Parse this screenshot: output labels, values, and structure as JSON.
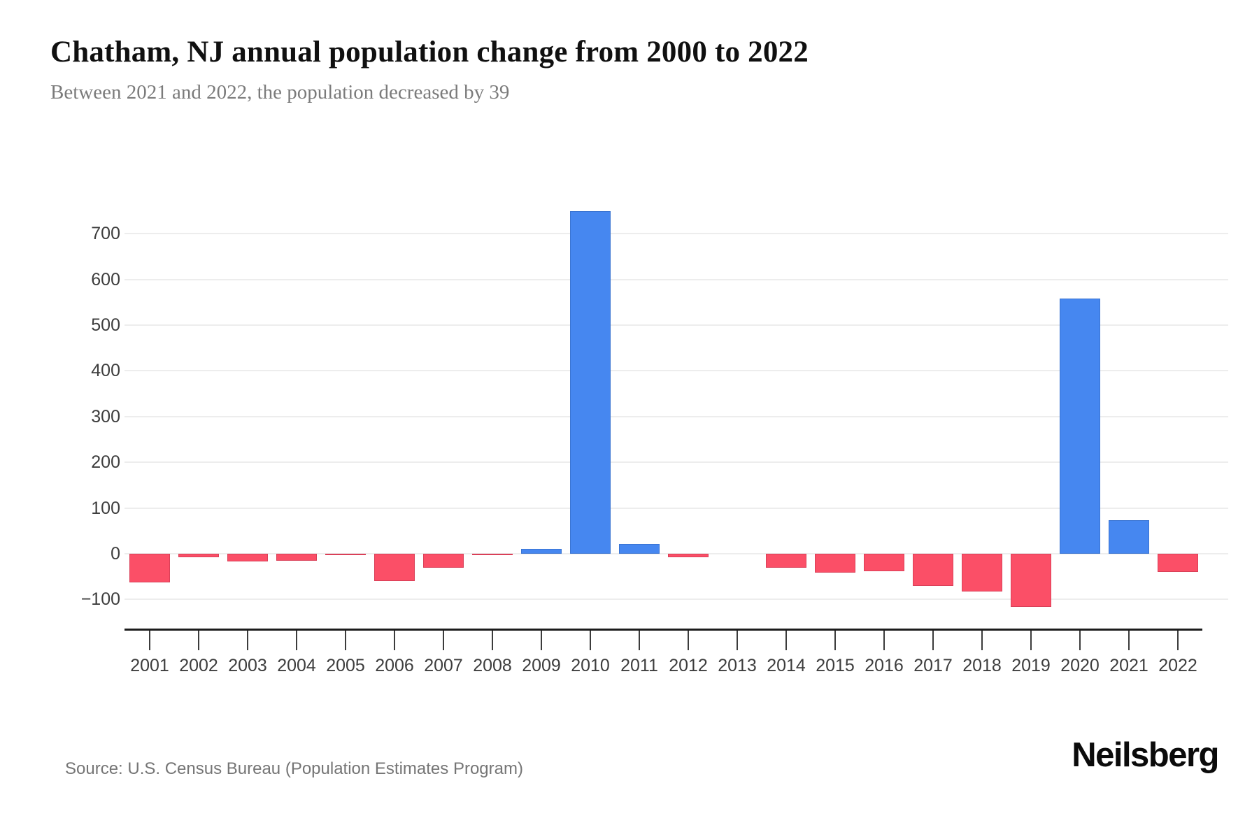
{
  "header": {
    "title": "Chatham, NJ annual population change from 2000 to 2022",
    "subtitle": "Between 2021 and 2022, the population decreased by 39"
  },
  "footer": {
    "source": "Source: U.S. Census Bureau (Population Estimates Program)",
    "brand": "Neilsberg"
  },
  "chart_data": {
    "type": "bar",
    "title": "Chatham, NJ annual population change from 2000 to 2022",
    "subtitle": "Between 2021 and 2022, the population decreased by 39",
    "categories": [
      "2001",
      "2002",
      "2003",
      "2004",
      "2005",
      "2006",
      "2007",
      "2008",
      "2009",
      "2010",
      "2011",
      "2012",
      "2013",
      "2014",
      "2015",
      "2016",
      "2017",
      "2018",
      "2019",
      "2020",
      "2021",
      "2022"
    ],
    "values": [
      -62,
      -7,
      -17,
      -16,
      -3,
      -60,
      -30,
      -2,
      10,
      749,
      21,
      -7,
      0,
      -31,
      -41,
      -38,
      -70,
      -83,
      -116,
      558,
      73,
      -39
    ],
    "xlabel": "",
    "ylabel": "",
    "ylim": [
      -170,
      780
    ],
    "yticks": [
      -100,
      0,
      100,
      200,
      300,
      400,
      500,
      600,
      700
    ],
    "grid": true,
    "legend": false,
    "colors": {
      "positive_bar": "#4687f0",
      "positive_bar_border": "#3a74d2",
      "negative_bar": "#fb4f67",
      "negative_bar_border": "#da4058",
      "gridline": "#ededed",
      "axis_line": "#1c1c1c",
      "tick_label": "#3d3d3d"
    }
  }
}
